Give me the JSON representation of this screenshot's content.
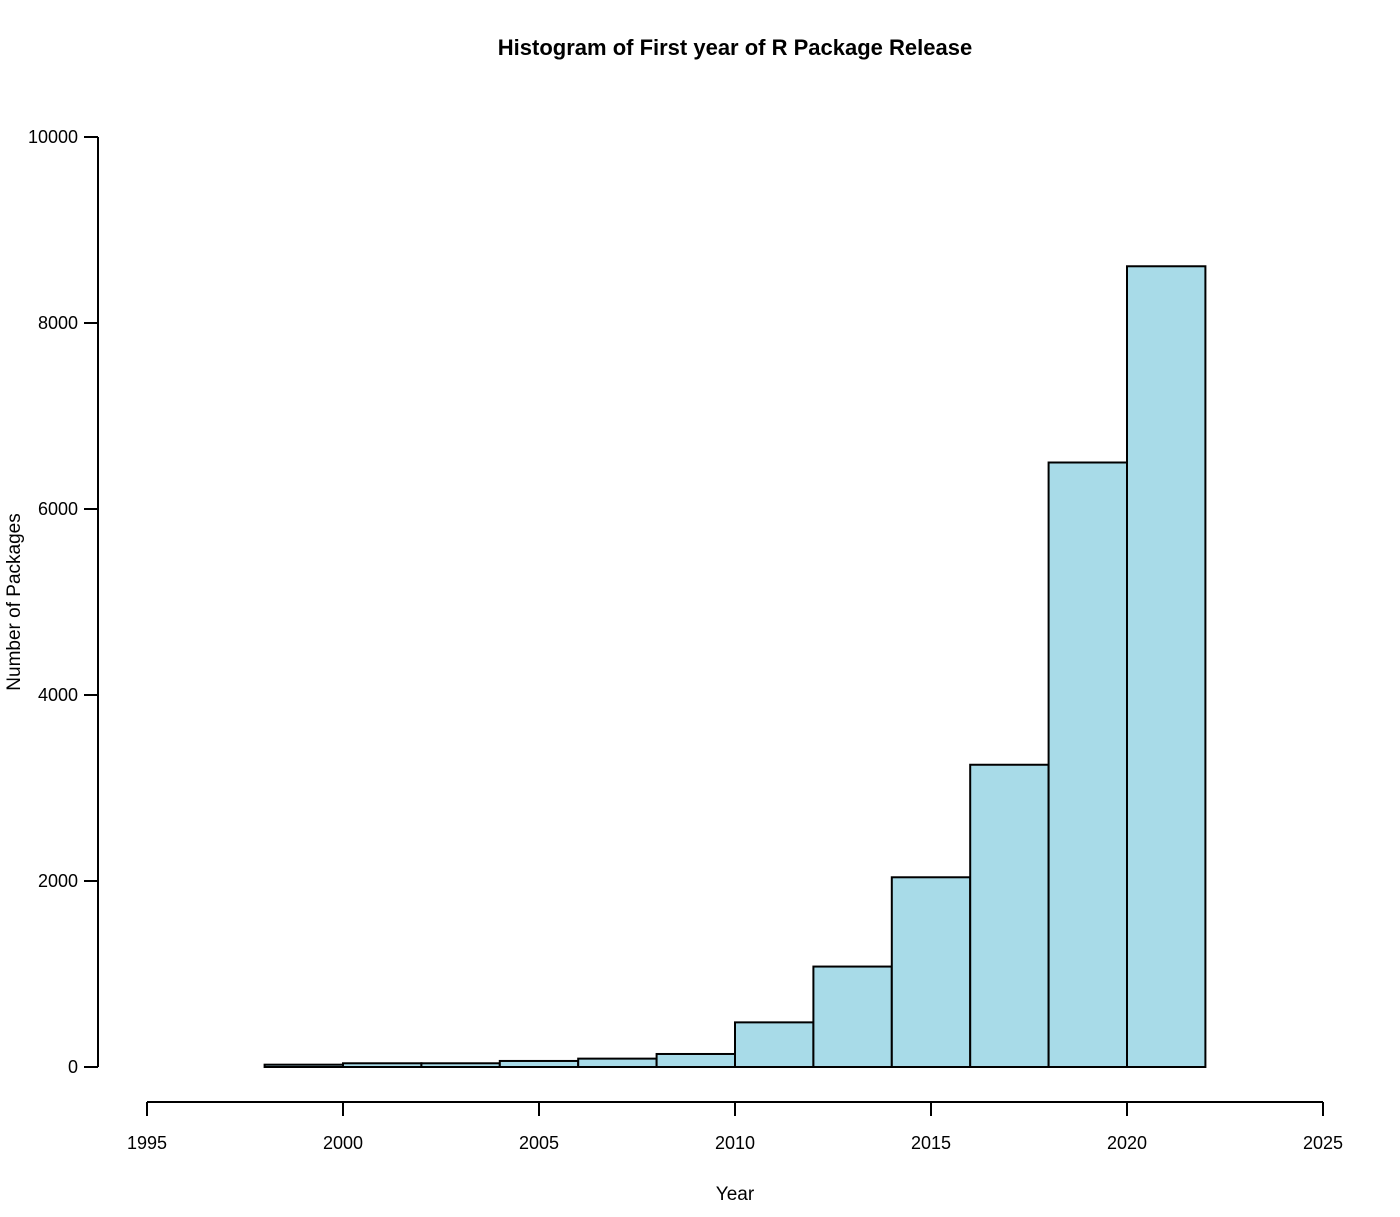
{
  "page": {
    "background_color": "#ffffff"
  },
  "chart_data": {
    "type": "bar",
    "subtype": "histogram",
    "title": "Histogram of First year of R Package Release",
    "xlabel": "Year",
    "ylabel": "Number of Packages",
    "xlim": [
      1995,
      2025
    ],
    "ylim": [
      0,
      10000
    ],
    "x_ticks": [
      1995,
      2000,
      2005,
      2010,
      2015,
      2020,
      2025
    ],
    "y_ticks": [
      0,
      2000,
      4000,
      6000,
      8000,
      10000
    ],
    "bin_width_years": 2,
    "bins": [
      {
        "start": 1998,
        "end": 2000,
        "count": 25
      },
      {
        "start": 2000,
        "end": 2002,
        "count": 40
      },
      {
        "start": 2002,
        "end": 2004,
        "count": 40
      },
      {
        "start": 2004,
        "end": 2006,
        "count": 65
      },
      {
        "start": 2006,
        "end": 2008,
        "count": 90
      },
      {
        "start": 2008,
        "end": 2010,
        "count": 140
      },
      {
        "start": 2010,
        "end": 2012,
        "count": 480
      },
      {
        "start": 2012,
        "end": 2014,
        "count": 1080
      },
      {
        "start": 2014,
        "end": 2016,
        "count": 2040
      },
      {
        "start": 2016,
        "end": 2018,
        "count": 3250
      },
      {
        "start": 2018,
        "end": 2020,
        "count": 6500
      },
      {
        "start": 2020,
        "end": 2022,
        "count": 8610
      }
    ],
    "grid": false,
    "legend": false,
    "bar_fill_color": "#A8DBE8",
    "bar_stroke_color": "#000000",
    "axis_color": "#000000",
    "text_color": "#000000"
  }
}
